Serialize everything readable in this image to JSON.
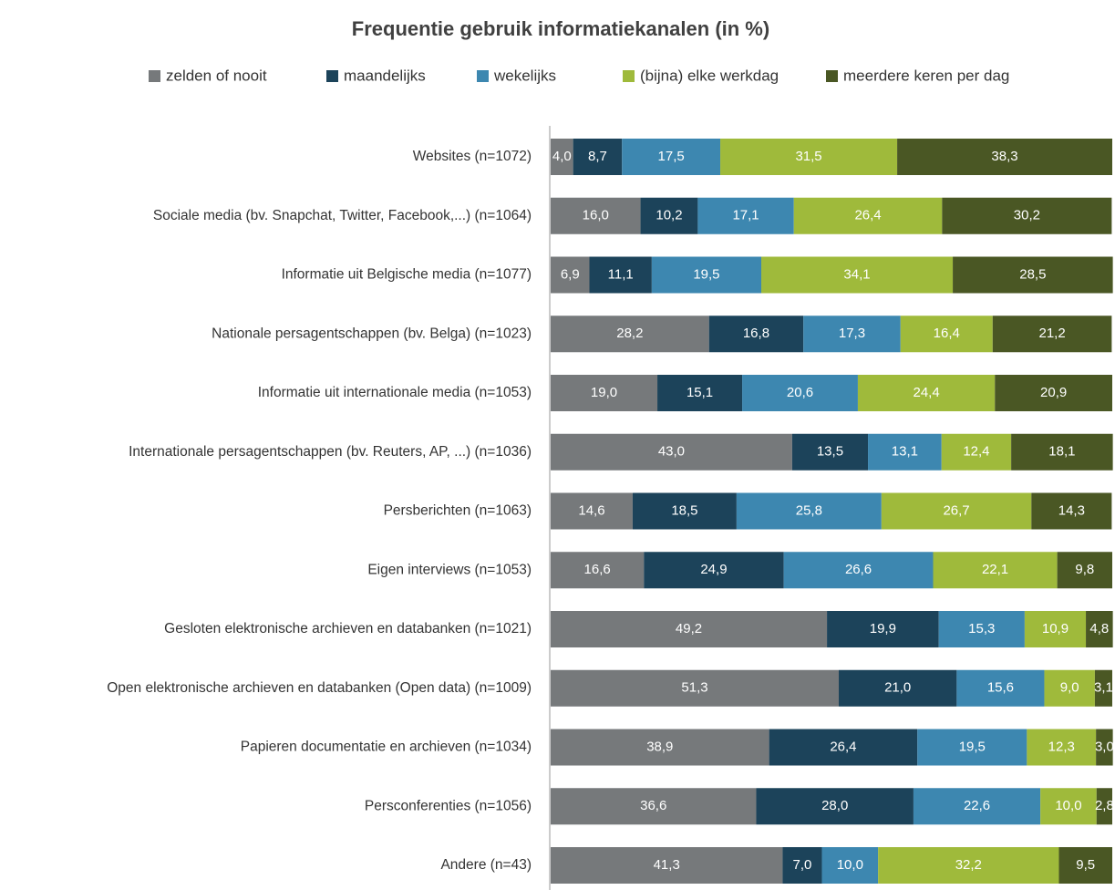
{
  "chart_data": {
    "type": "stacked-bar-horizontal",
    "title": "Frequentie gebruik informatiekanalen (in %)",
    "categories": [
      "Websites (n=1072)",
      "Sociale media (bv. Snapchat, Twitter, Facebook,...) (n=1064)",
      "Informatie uit Belgische media (n=1077)",
      "Nationale persagentschappen (bv. Belga) (n=1023)",
      "Informatie uit internationale media (n=1053)",
      "Internationale persagentschappen (bv. Reuters, AP, ...) (n=1036)",
      "Persberichten (n=1063)",
      "Eigen interviews (n=1053)",
      "Gesloten elektronische archieven en databanken (n=1021)",
      "Open elektronische archieven en databanken (Open data) (n=1009)",
      "Papieren documentatie en archieven (n=1034)",
      "Persconferenties (n=1056)",
      "Andere (n=43)"
    ],
    "xlim": [
      0,
      100
    ],
    "series": [
      {
        "name": "zelden of nooit",
        "color": "#76797b",
        "values": [
          4.0,
          16.0,
          6.9,
          28.2,
          19.0,
          43.0,
          14.6,
          16.6,
          49.2,
          51.3,
          38.9,
          36.6,
          41.3
        ],
        "value_labels": [
          "4,0",
          "16,0",
          "6,9",
          "28,2",
          "19,0",
          "43,0",
          "14,6",
          "16,6",
          "49,2",
          "51,3",
          "38,9",
          "36,6",
          "41,3"
        ]
      },
      {
        "name": "maandelijks",
        "color": "#1c435a",
        "values": [
          8.7,
          10.2,
          11.1,
          16.8,
          15.1,
          13.5,
          18.5,
          24.9,
          19.9,
          21.0,
          26.4,
          28.0,
          7.0
        ],
        "value_labels": [
          "8,7",
          "10,2",
          "11,1",
          "16,8",
          "15,1",
          "13,5",
          "18,5",
          "24,9",
          "19,9",
          "21,0",
          "26,4",
          "28,0",
          "7,0"
        ]
      },
      {
        "name": "wekelijks",
        "color": "#3d87b0",
        "values": [
          17.5,
          17.1,
          19.5,
          17.3,
          20.6,
          13.1,
          25.8,
          26.6,
          15.3,
          15.6,
          19.5,
          22.6,
          10.0
        ],
        "value_labels": [
          "17,5",
          "17,1",
          "19,5",
          "17,3",
          "20,6",
          "13,1",
          "25,8",
          "26,6",
          "15,3",
          "15,6",
          "19,5",
          "22,6",
          "10,0"
        ]
      },
      {
        "name": "(bijna) elke werkdag",
        "color": "#9fba3b",
        "values": [
          31.5,
          26.4,
          34.1,
          16.4,
          24.4,
          12.4,
          26.7,
          22.1,
          10.9,
          9.0,
          12.3,
          10.0,
          32.2
        ],
        "value_labels": [
          "31,5",
          "26,4",
          "34,1",
          "16,4",
          "24,4",
          "12,4",
          "26,7",
          "22,1",
          "10,9",
          "9,0",
          "12,3",
          "10,0",
          "32,2"
        ]
      },
      {
        "name": "meerdere keren per dag",
        "color": "#4a5724",
        "values": [
          38.3,
          30.2,
          28.5,
          21.2,
          20.9,
          18.1,
          14.3,
          9.8,
          4.8,
          3.1,
          3.0,
          2.8,
          9.5
        ],
        "value_labels": [
          "38,3",
          "30,2",
          "28,5",
          "21,2",
          "20,9",
          "18,1",
          "14,3",
          "9,8",
          "4,8",
          "3,1",
          "3,0",
          "2,8",
          "9,5"
        ]
      }
    ]
  }
}
